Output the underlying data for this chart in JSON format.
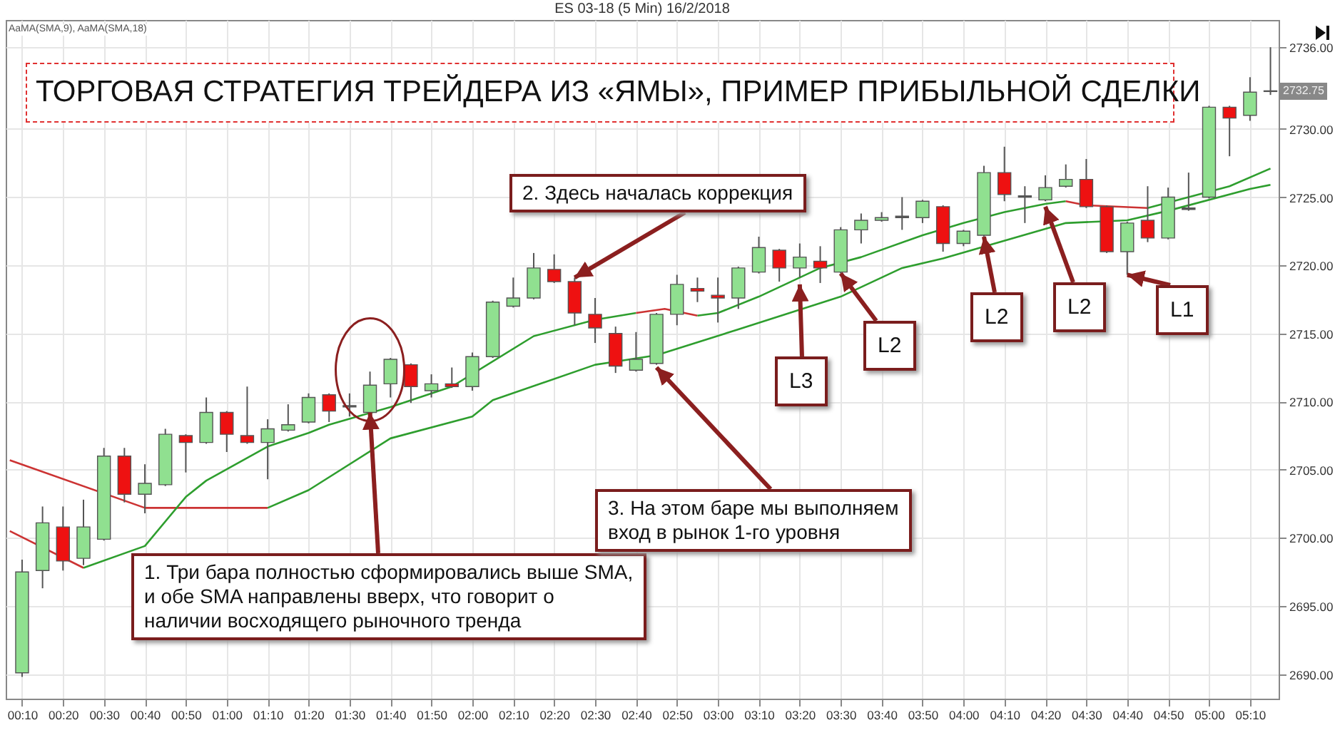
{
  "chart_data": {
    "type": "candlestick",
    "title": "ES 03-18 (5 Min) 16/2/2018",
    "x": [
      0.1667,
      0.25,
      0.3333,
      0.4167,
      0.5,
      0.5833,
      0.6667,
      0.75,
      0.8333,
      0.9167,
      1,
      1.0833,
      1.1667,
      1.25,
      1.3333,
      1.4167,
      1.5,
      1.5833,
      1.6667,
      1.75,
      1.8333,
      1.9167,
      2,
      2.0833,
      2.1667,
      2.25,
      2.3333,
      2.4167,
      2.5,
      2.5833,
      2.6667,
      2.75,
      2.8333,
      2.9167,
      3,
      3.0833,
      3.1667,
      3.25,
      3.3333,
      3.4167,
      3.5,
      3.5833,
      3.6667,
      3.75,
      3.8333,
      3.9167,
      4,
      4.0833,
      4.1667,
      4.25,
      4.3333,
      4.4167,
      4.5,
      4.5833,
      4.6667,
      4.75,
      4.8333,
      4.9167,
      5,
      5.0833,
      5.1667,
      5.25
    ],
    "ohlc": [
      [
        2690.1,
        2698.4,
        2689.8,
        2697.5
      ],
      [
        2697.6,
        2702.3,
        2696.3,
        2701.1
      ],
      [
        2700.8,
        2702.3,
        2697.6,
        2698.3
      ],
      [
        2698.5,
        2702.8,
        2698.0,
        2700.8
      ],
      [
        2699.9,
        2706.6,
        2699.8,
        2706.0
      ],
      [
        2706.0,
        2706.6,
        2702.6,
        2703.2
      ],
      [
        2703.2,
        2705.4,
        2701.8,
        2704.0
      ],
      [
        2703.9,
        2708.0,
        2703.8,
        2707.6
      ],
      [
        2707.5,
        2707.6,
        2704.8,
        2707.0
      ],
      [
        2707.0,
        2710.3,
        2706.9,
        2709.2
      ],
      [
        2709.2,
        2709.3,
        2706.3,
        2707.6
      ],
      [
        2707.5,
        2711.1,
        2706.9,
        2707.0
      ],
      [
        2707.0,
        2708.7,
        2704.3,
        2708.0
      ],
      [
        2707.9,
        2709.8,
        2707.8,
        2708.3
      ],
      [
        2708.5,
        2710.6,
        2708.4,
        2710.3
      ],
      [
        2710.5,
        2710.6,
        2708.5,
        2709.3
      ],
      [
        2709.6,
        2710.6,
        2708.9,
        2709.7
      ],
      [
        2709.2,
        2712.2,
        2709.1,
        2711.2
      ],
      [
        2711.3,
        2713.2,
        2710.3,
        2713.1
      ],
      [
        2712.7,
        2712.8,
        2709.9,
        2711.1
      ],
      [
        2710.8,
        2712.0,
        2710.3,
        2711.3
      ],
      [
        2711.3,
        2712.5,
        2711.0,
        2711.1
      ],
      [
        2711.1,
        2713.6,
        2710.8,
        2713.3
      ],
      [
        2713.3,
        2717.4,
        2713.2,
        2717.3
      ],
      [
        2717.0,
        2719.1,
        2716.9,
        2717.6
      ],
      [
        2717.6,
        2720.9,
        2717.5,
        2719.8
      ],
      [
        2719.7,
        2720.8,
        2718.7,
        2718.8
      ],
      [
        2718.8,
        2719.1,
        2715.6,
        2716.5
      ],
      [
        2716.4,
        2717.6,
        2714.3,
        2715.4
      ],
      [
        2715.0,
        2715.5,
        2712.1,
        2712.6
      ],
      [
        2712.3,
        2715.1,
        2712.2,
        2713.1
      ],
      [
        2712.8,
        2716.5,
        2712.7,
        2716.4
      ],
      [
        2716.4,
        2719.3,
        2715.6,
        2718.6
      ],
      [
        2718.3,
        2719.1,
        2717.3,
        2718.1
      ],
      [
        2717.8,
        2719.1,
        2715.8,
        2717.6
      ],
      [
        2717.6,
        2719.9,
        2716.8,
        2719.8
      ],
      [
        2719.5,
        2722.1,
        2719.4,
        2721.3
      ],
      [
        2721.1,
        2721.2,
        2718.8,
        2719.8
      ],
      [
        2719.8,
        2721.6,
        2719.1,
        2720.6
      ],
      [
        2720.3,
        2721.4,
        2718.7,
        2719.8
      ],
      [
        2719.5,
        2722.8,
        2719.4,
        2722.6
      ],
      [
        2722.6,
        2723.8,
        2721.6,
        2723.3
      ],
      [
        2723.3,
        2723.9,
        2723.2,
        2723.5
      ],
      [
        2723.5,
        2725.0,
        2722.6,
        2723.6
      ],
      [
        2723.5,
        2724.8,
        2723.1,
        2724.7
      ],
      [
        2724.3,
        2724.4,
        2721.0,
        2721.6
      ],
      [
        2721.6,
        2722.6,
        2721.4,
        2722.5
      ],
      [
        2722.2,
        2727.3,
        2722.1,
        2726.8
      ],
      [
        2726.8,
        2728.7,
        2724.7,
        2725.2
      ],
      [
        2725.0,
        2725.8,
        2723.1,
        2725.1
      ],
      [
        2724.8,
        2726.6,
        2724.7,
        2725.7
      ],
      [
        2725.8,
        2727.4,
        2725.7,
        2726.3
      ],
      [
        2726.3,
        2727.8,
        2724.2,
        2724.3
      ],
      [
        2724.3,
        2724.4,
        2720.9,
        2721.0
      ],
      [
        2721.0,
        2723.2,
        2719.3,
        2723.1
      ],
      [
        2723.3,
        2725.8,
        2721.7,
        2722.0
      ],
      [
        2722.0,
        2725.7,
        2721.9,
        2725.0
      ],
      [
        2724.1,
        2726.8,
        2724.0,
        2724.2
      ],
      [
        2725.0,
        2731.7,
        2724.9,
        2731.6
      ],
      [
        2731.6,
        2731.7,
        2728.0,
        2730.8
      ],
      [
        2731.0,
        2733.8,
        2730.6,
        2732.7
      ],
      [
        2732.8,
        2736.0,
        2732.5,
        2732.75
      ]
    ],
    "colors": [
      "#90e090",
      "#90e090",
      "#ee1111",
      "#90e090",
      "#90e090",
      "#ee1111",
      "#90e090",
      "#90e090",
      "#ee1111",
      "#90e090",
      "#ee1111",
      "#ee1111",
      "#90e090",
      "#90e090",
      "#90e090",
      "#ee1111",
      "#555555",
      "#90e090",
      "#90e090",
      "#ee1111",
      "#90e090",
      "#ee1111",
      "#90e090",
      "#90e090",
      "#90e090",
      "#90e090",
      "#ee1111",
      "#ee1111",
      "#ee1111",
      "#ee1111",
      "#90e090",
      "#90e090",
      "#90e090",
      "#ee1111",
      "#ee1111",
      "#90e090",
      "#90e090",
      "#ee1111",
      "#90e090",
      "#ee1111",
      "#90e090",
      "#90e090",
      "#90e090",
      "#555555",
      "#90e090",
      "#ee1111",
      "#90e090",
      "#90e090",
      "#ee1111",
      "#555555",
      "#90e090",
      "#90e090",
      "#ee1111",
      "#ee1111",
      "#90e090",
      "#ee1111",
      "#90e090",
      "#555555",
      "#90e090",
      "#ee1111",
      "#90e090",
      "#ee1111"
    ],
    "series": [
      {
        "type": "line",
        "color": "#cc3333",
        "x": [
          0.1167,
          0.6667,
          1.1667
        ],
        "values": [
          2705.7,
          2702.2,
          2702.2
        ]
      },
      {
        "type": "line",
        "color": "#2e9e2e",
        "x": [
          1.1667,
          1.3333,
          1.6667,
          2,
          2.0833,
          2.5,
          2.75,
          3.0833,
          3.5,
          3.75,
          3.9167,
          4.4167,
          4.6667,
          4.8333,
          5.1667,
          5.25
        ],
        "values": [
          2702.2,
          2703.5,
          2707.3,
          2708.9,
          2710.1,
          2712.7,
          2713.4,
          2715.3,
          2717.7,
          2719.8,
          2720.5,
          2723.1,
          2723.3,
          2724.0,
          2725.6,
          2725.9
        ]
      },
      {
        "type": "line",
        "color": "#cc3333",
        "x": [
          0.1167,
          0.4167
        ],
        "values": [
          2700.5,
          2697.8
        ]
      },
      {
        "type": "line",
        "color": "#2e9e2e",
        "x": [
          0.4167,
          0.6667,
          0.8333,
          0.9167,
          1.1667,
          1.3333,
          1.4167,
          1.6667,
          1.9167,
          2.25,
          2.5,
          2.6667
        ],
        "values": [
          2697.8,
          2699.4,
          2703.0,
          2704.2,
          2706.7,
          2707.7,
          2708.3,
          2709.6,
          2711.1,
          2714.8,
          2716.0,
          2716.5
        ]
      },
      {
        "type": "line",
        "color": "#cc3333",
        "x": [
          2.6667,
          2.7833,
          2.9167
        ],
        "values": [
          2716.5,
          2716.8,
          2716.3
        ]
      },
      {
        "type": "line",
        "color": "#2e9e2e",
        "x": [
          2.9167,
          3,
          3.1667,
          3.4167,
          3.5833,
          3.8333,
          4,
          4.1667,
          4.3333,
          4.4167
        ],
        "values": [
          2716.3,
          2716.5,
          2717.7,
          2719.8,
          2720.6,
          2722.2,
          2723.1,
          2723.9,
          2724.5,
          2724.7
        ]
      },
      {
        "type": "line",
        "color": "#cc3333",
        "x": [
          4.4167,
          4.5,
          4.75
        ],
        "values": [
          2724.7,
          2724.4,
          2724.2
        ]
      },
      {
        "type": "line",
        "color": "#2e9e2e",
        "x": [
          4.75,
          5.0833,
          5.25
        ],
        "values": [
          2724.2,
          2725.8,
          2727.1
        ]
      }
    ],
    "xlim": [
      0.1,
      5.2833
    ],
    "xticks": [
      {
        "value": 0.1667,
        "label": "00:10"
      },
      {
        "value": 0.3333,
        "label": "00:20"
      },
      {
        "value": 0.5,
        "label": "00:30"
      },
      {
        "value": 0.6667,
        "label": "00:40"
      },
      {
        "value": 0.8333,
        "label": "00:50"
      },
      {
        "value": 1,
        "label": "01:00"
      },
      {
        "value": 1.1667,
        "label": "01:10"
      },
      {
        "value": 1.3333,
        "label": "01:20"
      },
      {
        "value": 1.5,
        "label": "01:30"
      },
      {
        "value": 1.6667,
        "label": "01:40"
      },
      {
        "value": 1.8333,
        "label": "01:50"
      },
      {
        "value": 2,
        "label": "02:00"
      },
      {
        "value": 2.1667,
        "label": "02:10"
      },
      {
        "value": 2.3333,
        "label": "02:20"
      },
      {
        "value": 2.5,
        "label": "02:30"
      },
      {
        "value": 2.6667,
        "label": "02:40"
      },
      {
        "value": 2.8333,
        "label": "02:50"
      },
      {
        "value": 3,
        "label": "03:00"
      },
      {
        "value": 3.1667,
        "label": "03:10"
      },
      {
        "value": 3.3333,
        "label": "03:20"
      },
      {
        "value": 3.5,
        "label": "03:30"
      },
      {
        "value": 3.6667,
        "label": "03:40"
      },
      {
        "value": 3.8333,
        "label": "03:50"
      },
      {
        "value": 4,
        "label": "04:00"
      },
      {
        "value": 4.1667,
        "label": "04:10"
      },
      {
        "value": 4.3333,
        "label": "04:20"
      },
      {
        "value": 4.5,
        "label": "04:30"
      },
      {
        "value": 4.6667,
        "label": "04:40"
      },
      {
        "value": 4.8333,
        "label": "04:50"
      },
      {
        "value": 5,
        "label": "05:00"
      },
      {
        "value": 5.1667,
        "label": "05:10"
      }
    ],
    "ylim": [
      2688.2,
      2738
    ],
    "yticks": [
      {
        "value": 2690,
        "label": "2690.00"
      },
      {
        "value": 2695,
        "label": "2695.00"
      },
      {
        "value": 2700,
        "label": "2700.00"
      },
      {
        "value": 2705,
        "label": "2705.00"
      },
      {
        "value": 2710,
        "label": "2710.00"
      },
      {
        "value": 2715,
        "label": "2715.00"
      },
      {
        "value": 2720,
        "label": "2720.00"
      },
      {
        "value": 2725,
        "label": "2725.00"
      },
      {
        "value": 2730,
        "label": "2730.00"
      },
      {
        "value": 2736,
        "label": "2736.00"
      }
    ],
    "grid": true,
    "annotations": [
      "AaMA(SMA,9), AaMA(SMA,18)",
      "ТОРГОВАЯ СТРАТЕГИЯ ТРЕЙДЕРА ИЗ «ЯМЫ»,  ПРИМЕР ПРИБЫЛЬНОЙ СДЕЛКИ",
      {
        "text": "1. Три бара полностью сформировались выше SMA,\nи обе SMA направлены вверх, что говорит о\nналичии восходящего рыночного тренда",
        "x": 1.5833,
        "y": 2709.2
      },
      {
        "text": "2. Здесь началась коррекция",
        "x": 2.4167,
        "y": 2719.1
      },
      {
        "text": "3. На этом баре мы выполняем\nвход в рынок 1-го уровня",
        "x": 2.75,
        "y": 2712.5
      },
      {
        "text": "L3",
        "x": 3.3333,
        "y": 2718.6
      },
      {
        "text": "L2",
        "x": 3.5,
        "y": 2719.4
      },
      {
        "text": "L2",
        "x": 4.0833,
        "y": 2722.1
      },
      {
        "text": "L2",
        "x": 4.3333,
        "y": 2724.3
      },
      {
        "text": "L1",
        "x": 4.6667,
        "y": 2719.3
      },
      {
        "text": "2732.75",
        "x": 5.25,
        "y": 2732.75
      }
    ]
  }
}
